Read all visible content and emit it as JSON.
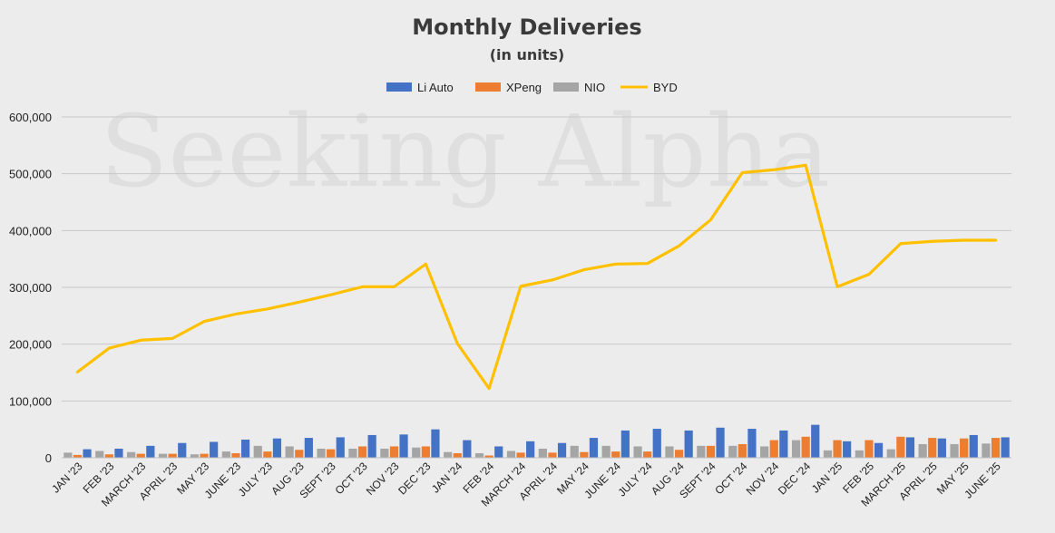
{
  "watermark": "Seeking Alpha",
  "chart_data": {
    "type": "bar+line",
    "title": "Monthly Deliveries",
    "subtitle": "(in units)",
    "ylim": [
      0,
      600000
    ],
    "yticks": [
      0,
      100000,
      200000,
      300000,
      400000,
      500000,
      600000
    ],
    "ytick_labels": [
      "0",
      "100,000",
      "200,000",
      "300,000",
      "400,000",
      "500,000",
      "600,000"
    ],
    "legend_position": "top-center",
    "grid": true,
    "categories": [
      "JAN '23",
      "FEB '23",
      "MARCH '23",
      "APRIL '23",
      "MAY '23",
      "JUNE '23",
      "JULY '23",
      "AUG '23",
      "SEPT '23",
      "OCT '23",
      "NOV '23",
      "DEC '23",
      "JAN '24",
      "FEB '24",
      "MARCH '24",
      "APRIL '24",
      "MAY '24",
      "JUNE '24",
      "JULY '24",
      "AUG '24",
      "SEPT '24",
      "OCT '24",
      "NOV '24",
      "DEC '24",
      "JAN '25",
      "FEB '25",
      "MARCH '25",
      "APRIL '25",
      "MAY '25",
      "JUNE '25"
    ],
    "series": [
      {
        "name": "Li Auto",
        "type": "bar",
        "color": "#4472c4",
        "values": [
          15000,
          16000,
          21000,
          26000,
          28000,
          32000,
          34000,
          35000,
          36000,
          40000,
          41000,
          50000,
          31000,
          20000,
          29000,
          26000,
          35000,
          48000,
          51000,
          48000,
          53000,
          51000,
          48000,
          58000,
          29000,
          26000,
          36000,
          34000,
          40000,
          36000
        ]
      },
      {
        "name": "XPeng",
        "type": "bar",
        "color": "#ed7d31",
        "values": [
          5000,
          6000,
          7000,
          7000,
          7000,
          8000,
          11000,
          14000,
          15000,
          20000,
          20000,
          20000,
          8000,
          4000,
          9000,
          9000,
          10000,
          11000,
          11000,
          14000,
          21000,
          24000,
          31000,
          37000,
          31000,
          31000,
          37000,
          35000,
          34000,
          35000
        ]
      },
      {
        "name": "NIO",
        "type": "bar",
        "color": "#a5a5a5",
        "values": [
          9000,
          12000,
          10000,
          7000,
          6000,
          11000,
          21000,
          20000,
          16000,
          16000,
          16000,
          18000,
          10000,
          8000,
          12000,
          16000,
          21000,
          21000,
          20000,
          20000,
          21000,
          21000,
          20000,
          31000,
          13000,
          13000,
          15000,
          24000,
          24000,
          25000
        ]
      },
      {
        "name": "BYD",
        "type": "line",
        "color": "#ffc000",
        "values": [
          151000,
          193000,
          207000,
          210000,
          240000,
          253000,
          262000,
          274000,
          287000,
          301000,
          301000,
          341000,
          201000,
          122000,
          302000,
          313000,
          331000,
          341000,
          342000,
          373000,
          419000,
          502000,
          507000,
          515000,
          301000,
          323000,
          377000,
          381000,
          383000,
          383000
        ]
      }
    ]
  }
}
